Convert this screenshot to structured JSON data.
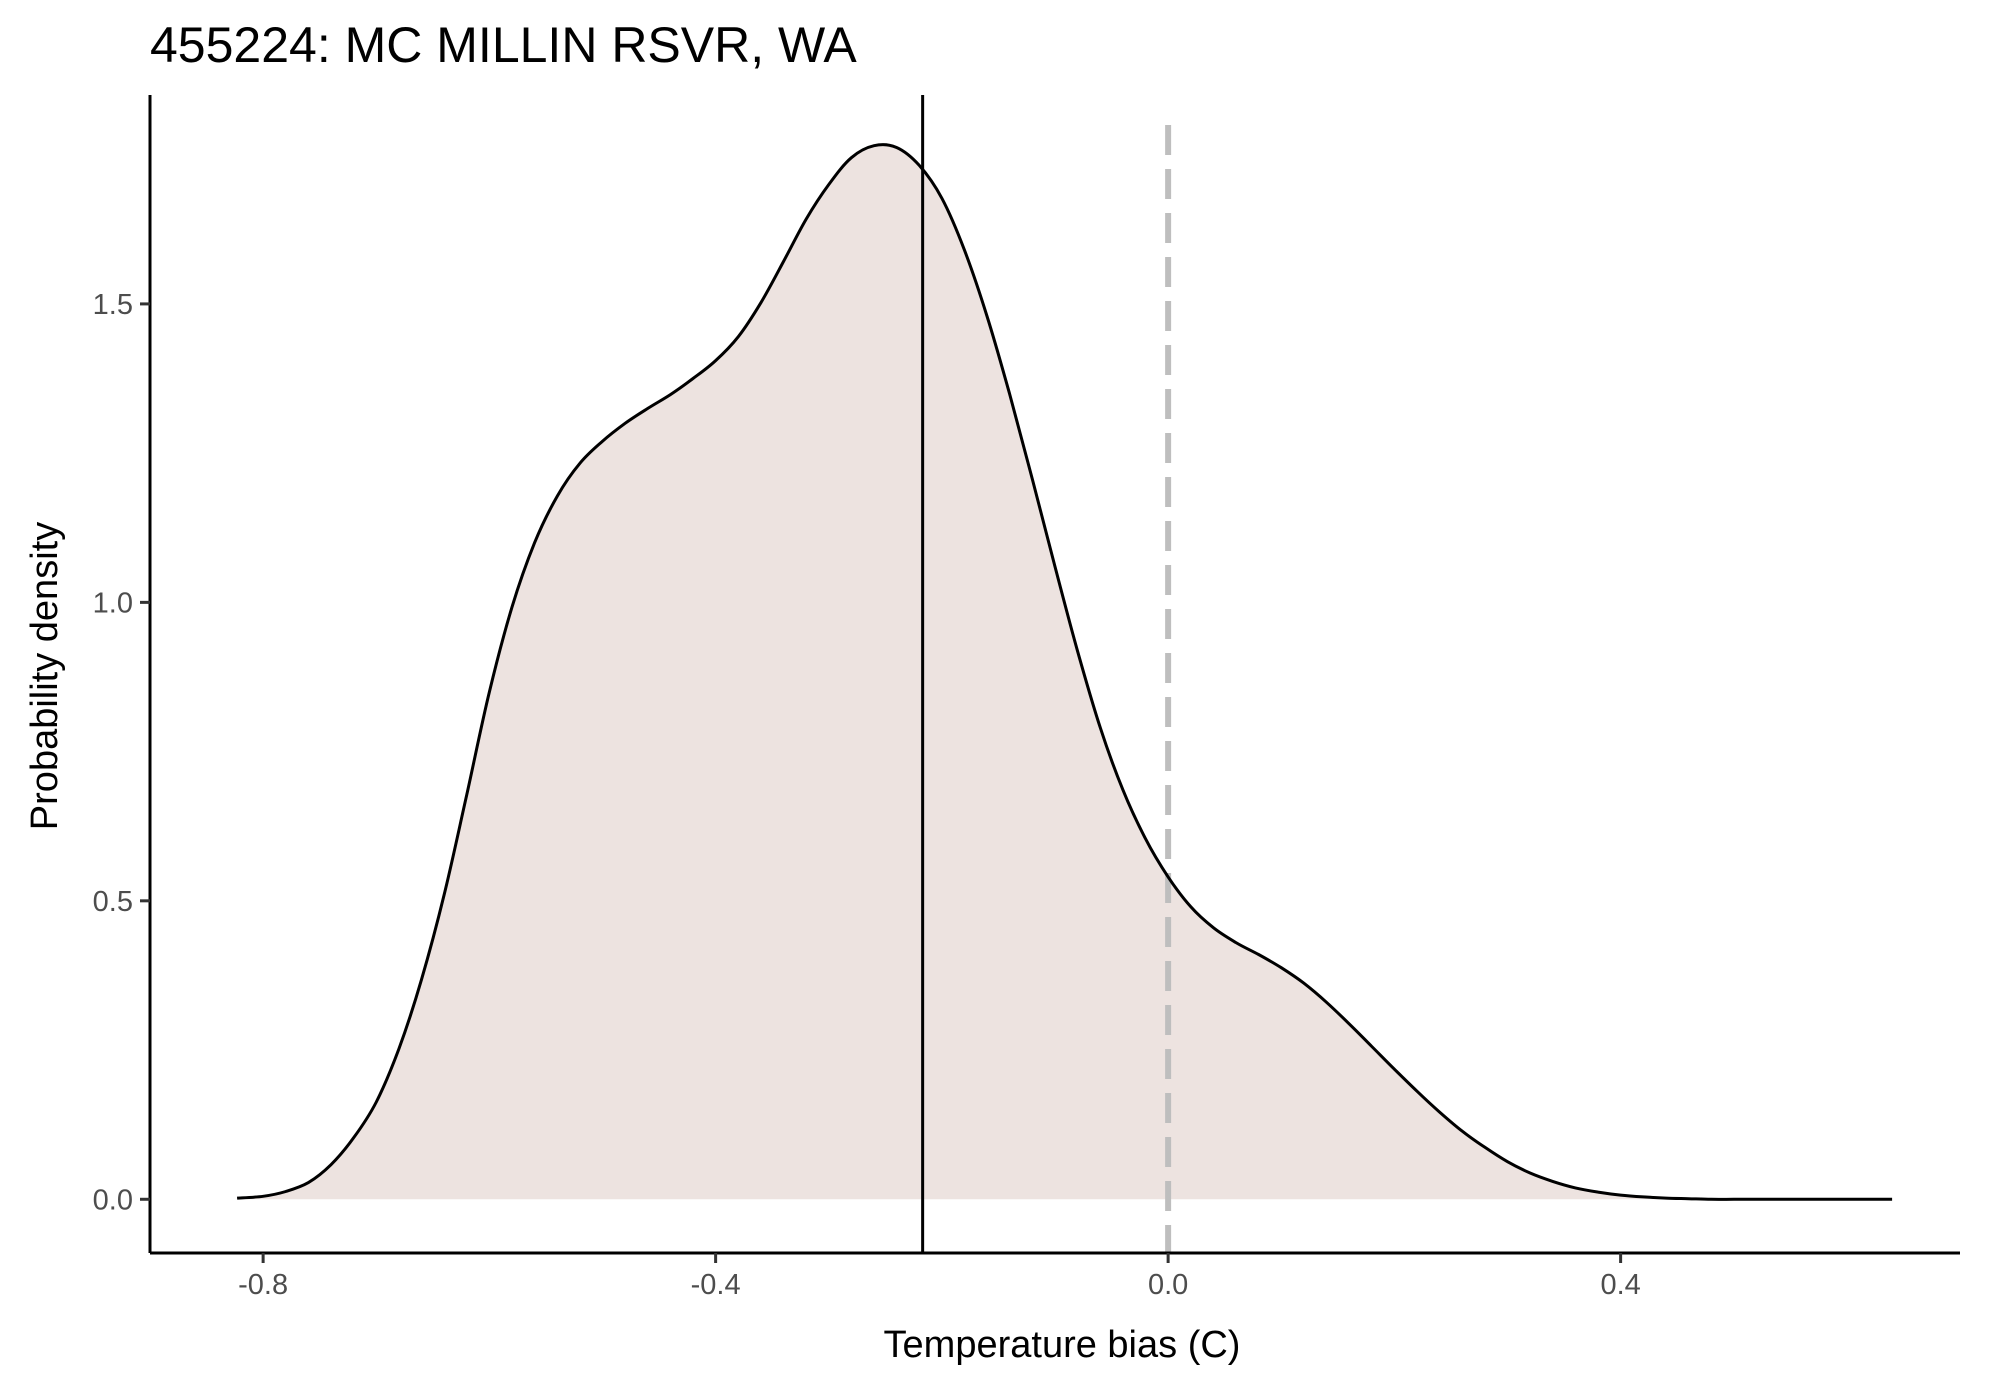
{
  "chart_data": {
    "type": "area",
    "title": "455224: MC MILLIN RSVR, WA",
    "xlabel": "Temperature bias (C)",
    "ylabel": "Probability density",
    "xlim": [
      -0.9,
      0.7
    ],
    "ylim": [
      -0.09,
      1.85
    ],
    "x_ticks": [
      -0.8,
      -0.4,
      0.0,
      0.4
    ],
    "x_tick_labels": [
      "-0.8",
      "-0.4",
      "0.0",
      "0.4"
    ],
    "y_ticks": [
      0.0,
      0.5,
      1.0,
      1.5
    ],
    "y_tick_labels": [
      "0.0",
      "0.5",
      "1.0",
      "1.5"
    ],
    "grid": false,
    "series": [
      {
        "x": [
          -0.823,
          -0.8,
          -0.78,
          -0.76,
          -0.74,
          -0.72,
          -0.7,
          -0.68,
          -0.66,
          -0.64,
          -0.62,
          -0.6,
          -0.58,
          -0.56,
          -0.54,
          -0.52,
          -0.5,
          -0.48,
          -0.46,
          -0.44,
          -0.42,
          -0.4,
          -0.38,
          -0.36,
          -0.34,
          -0.32,
          -0.3,
          -0.28,
          -0.26,
          -0.24,
          -0.22,
          -0.2,
          -0.18,
          -0.16,
          -0.14,
          -0.12,
          -0.1,
          -0.08,
          -0.06,
          -0.04,
          -0.02,
          0.0,
          0.02,
          0.04,
          0.06,
          0.08,
          0.1,
          0.12,
          0.14,
          0.16,
          0.18,
          0.2,
          0.22,
          0.24,
          0.26,
          0.28,
          0.3,
          0.32,
          0.34,
          0.36,
          0.38,
          0.4,
          0.42,
          0.44,
          0.46,
          0.48,
          0.5,
          0.52,
          0.54,
          0.56,
          0.58,
          0.6,
          0.62,
          0.64
        ],
        "y": [
          0.002,
          0.005,
          0.013,
          0.028,
          0.058,
          0.103,
          0.163,
          0.252,
          0.368,
          0.51,
          0.678,
          0.85,
          0.992,
          1.1,
          1.178,
          1.233,
          1.27,
          1.3,
          1.325,
          1.348,
          1.375,
          1.405,
          1.445,
          1.502,
          1.571,
          1.642,
          1.7,
          1.745,
          1.765,
          1.762,
          1.732,
          1.677,
          1.59,
          1.479,
          1.348,
          1.206,
          1.06,
          0.918,
          0.79,
          0.686,
          0.604,
          0.54,
          0.49,
          0.455,
          0.43,
          0.41,
          0.388,
          0.362,
          0.33,
          0.294,
          0.256,
          0.218,
          0.181,
          0.146,
          0.114,
          0.087,
          0.063,
          0.044,
          0.03,
          0.019,
          0.012,
          0.007,
          0.004,
          0.002,
          0.001,
          0.0,
          0.0,
          0.0,
          0.0,
          0.0,
          0.0,
          0.0,
          0.0,
          0.0
        ]
      }
    ],
    "reference_lines": [
      {
        "x": -0.217,
        "style": "solid",
        "color": "#000000"
      },
      {
        "x": 0.0,
        "style": "dashed",
        "color": "#bebebe"
      }
    ],
    "fill_color": "#ede3e0",
    "line_color": "#000000"
  }
}
